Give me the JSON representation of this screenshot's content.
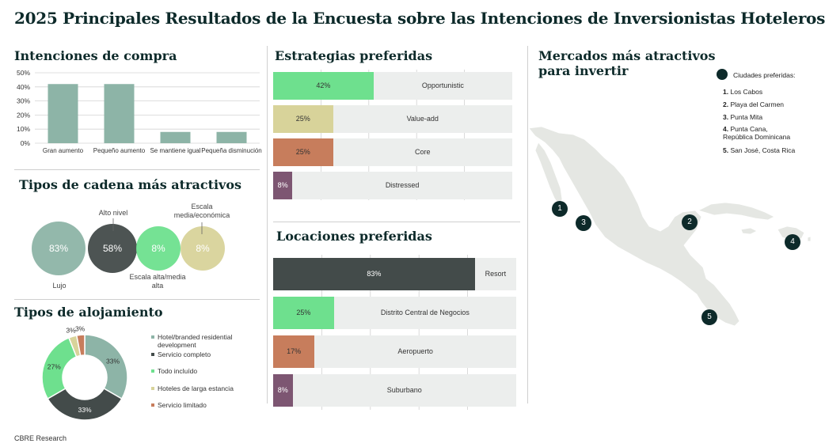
{
  "title": "2025 Principales Resultados de la Encuesta sobre las Intenciones de Inversionistas Hoteleros",
  "source": "CBRE Research",
  "colors": {
    "dark_green": "#0d2a2a",
    "charcoal": "#434b4a",
    "sage": "#8db4a7",
    "bright_green": "#6ee08e",
    "tan": "#d8d39a",
    "terracotta": "#c77d5c",
    "plum": "#7d5672",
    "track": "#eceeed",
    "land": "#e5e7e3"
  },
  "sections": {
    "purchase": "Intenciones de compra",
    "chains": "Tipos de cadena más atractivos",
    "lodging": "Tipos de alojamiento",
    "strategies": "Estrategias preferidas",
    "locations": "Locaciones preferidas",
    "markets": "Mercados más atractivos para invertir"
  },
  "chart_data": [
    {
      "id": "purchase",
      "type": "bar",
      "title": "Intenciones de compra",
      "categories": [
        "Gran aumento",
        "Pequeño aumento",
        "Se mantiene igual",
        "Pequeña disminución"
      ],
      "values": [
        42,
        42,
        8,
        8
      ],
      "yticks": [
        "0%",
        "10%",
        "20%",
        "30%",
        "40%",
        "50%"
      ],
      "ylim": [
        0,
        50
      ],
      "grid": true,
      "color": "#8db4a7"
    },
    {
      "id": "chains",
      "type": "bubble",
      "title": "Tipos de cadena más atractivos",
      "items": [
        {
          "name": "Lujo",
          "value": 83,
          "label": "83%",
          "color": "#8db4a7"
        },
        {
          "name": "Alto nivel",
          "value": 58,
          "label": "58%",
          "color": "#434b4a"
        },
        {
          "name": "Escala alta/media alta",
          "value": 8,
          "label": "8%",
          "color": "#6ee08e"
        },
        {
          "name": "Escala media/económica",
          "value": 8,
          "label": "8%",
          "color": "#d8d39a"
        }
      ]
    },
    {
      "id": "lodging",
      "type": "pie",
      "title": "Tipos de alojamiento",
      "slices": [
        {
          "name": "Hotel/branded residential development",
          "value": 33,
          "label": "33%",
          "color": "#8db4a7"
        },
        {
          "name": "Servicio completo",
          "value": 33,
          "label": "33%",
          "color": "#434b4a"
        },
        {
          "name": "Todo incluído",
          "value": 27,
          "label": "27%",
          "color": "#6ee08e"
        },
        {
          "name": "Hoteles de larga estancia",
          "value": 3,
          "label": "3%",
          "color": "#d8d39a"
        },
        {
          "name": "Servicio limitado",
          "value": 3,
          "label": "3%",
          "color": "#c77d5c"
        }
      ]
    },
    {
      "id": "strategies",
      "type": "bar",
      "orientation": "horizontal",
      "title": "Estrategias preferidas",
      "categories": [
        "Opportunistic",
        "Value-add",
        "Core",
        "Distressed"
      ],
      "values": [
        42,
        25,
        25,
        8
      ],
      "labels": [
        "42%",
        "25%",
        "25%",
        "8%"
      ],
      "colors": [
        "#6ee08e",
        "#d8d39a",
        "#c77d5c",
        "#7d5672"
      ],
      "xlim": [
        0,
        100
      ]
    },
    {
      "id": "locations",
      "type": "bar",
      "orientation": "horizontal",
      "title": "Locaciones preferidas",
      "categories": [
        "Resort",
        "Distrito Central de Negocios",
        "Aeropuerto",
        "Suburbano"
      ],
      "values": [
        83,
        25,
        17,
        8
      ],
      "labels": [
        "83%",
        "25%",
        "17%",
        "8%"
      ],
      "colors": [
        "#434b4a",
        "#6ee08e",
        "#c77d5c",
        "#7d5672"
      ],
      "xlim": [
        0,
        100
      ]
    }
  ],
  "chain_labels": {
    "lujo": "Lujo",
    "alto": "Alto nivel",
    "alta": [
      "Escala alta/media",
      "alta"
    ],
    "media": [
      "Escala",
      "media/económica"
    ]
  },
  "lodging_legend": [
    {
      "lines": [
        "Hotel/branded residential",
        "development"
      ],
      "color": "#8db4a7"
    },
    {
      "lines": [
        "Servicio completo"
      ],
      "color": "#434b4a"
    },
    {
      "lines": [
        "Todo incluído"
      ],
      "color": "#6ee08e"
    },
    {
      "lines": [
        "Hoteles de larga estancia"
      ],
      "color": "#d8d39a"
    },
    {
      "lines": [
        "Servicio limitado"
      ],
      "color": "#c77d5c"
    }
  ],
  "map": {
    "legend_label": "Ciudades preferidas:",
    "cities": [
      {
        "num": "1.",
        "name": "Los Cabos"
      },
      {
        "num": "2.",
        "name": "Playa del Carmen"
      },
      {
        "num": "3.",
        "name": "Punta Mita"
      },
      {
        "num": "4.",
        "name": "Punta Cana,",
        "name2": "República Dominicana"
      },
      {
        "num": "5.",
        "name": "San José, Costa Rica"
      }
    ],
    "markers": [
      "1",
      "2",
      "3",
      "4",
      "5"
    ]
  }
}
